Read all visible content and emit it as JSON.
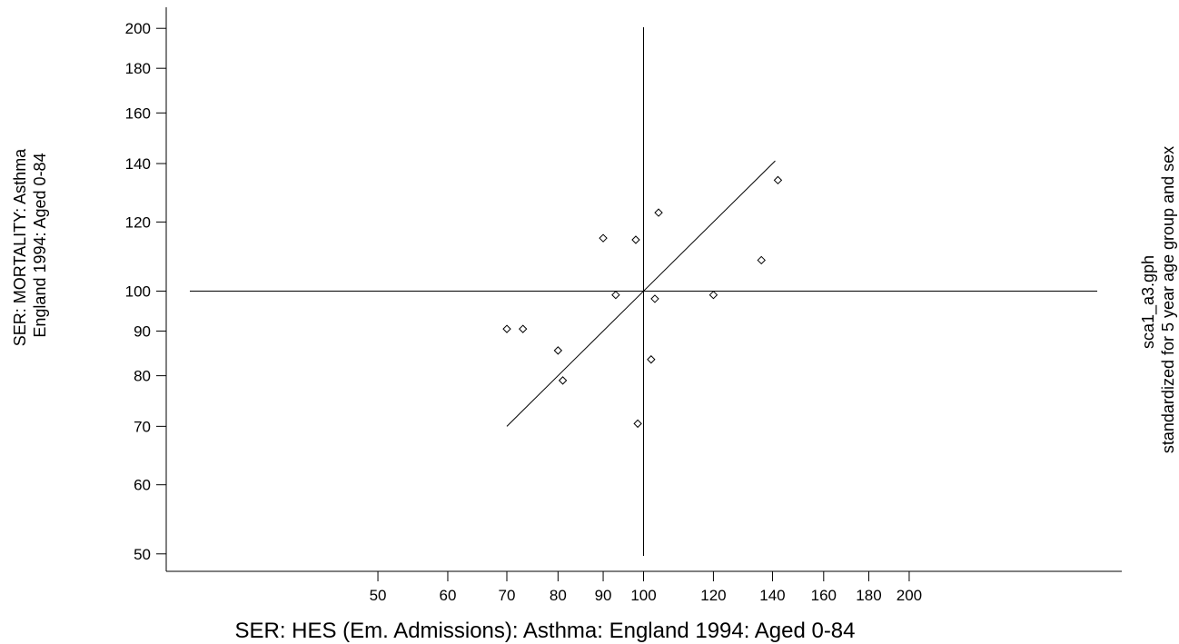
{
  "chart_data": {
    "type": "scatter",
    "xlabel": "SER: HES (Em. Admissions): Asthma: England 1994: Aged 0-84",
    "ylabel_lines": [
      "SER: MORTALITY: Asthma",
      "England 1994: Aged 0-84"
    ],
    "right_caption_lines": [
      "sca1_a3.gph",
      "standardized for 5 year age group and sex"
    ],
    "xscale": "log",
    "yscale": "log",
    "x_ticks": [
      50,
      60,
      70,
      80,
      90,
      100,
      120,
      140,
      160,
      180,
      200
    ],
    "y_ticks": [
      50,
      60,
      70,
      80,
      90,
      100,
      120,
      140,
      160,
      180,
      200
    ],
    "reference_lines": {
      "x": 100,
      "y": 100
    },
    "points": [
      {
        "x": 70,
        "y": 90.5
      },
      {
        "x": 73,
        "y": 90.5
      },
      {
        "x": 80,
        "y": 85.5
      },
      {
        "x": 81,
        "y": 79
      },
      {
        "x": 90,
        "y": 115
      },
      {
        "x": 93,
        "y": 99
      },
      {
        "x": 98,
        "y": 114.5
      },
      {
        "x": 98.5,
        "y": 70.5
      },
      {
        "x": 102,
        "y": 83.5
      },
      {
        "x": 103,
        "y": 98
      },
      {
        "x": 104,
        "y": 123
      },
      {
        "x": 120,
        "y": 99
      },
      {
        "x": 136,
        "y": 108.5
      },
      {
        "x": 142,
        "y": 134
      }
    ],
    "fit_line": {
      "x": [
        70,
        141
      ],
      "y": [
        70,
        141
      ]
    },
    "grid": false,
    "legend": "none"
  }
}
